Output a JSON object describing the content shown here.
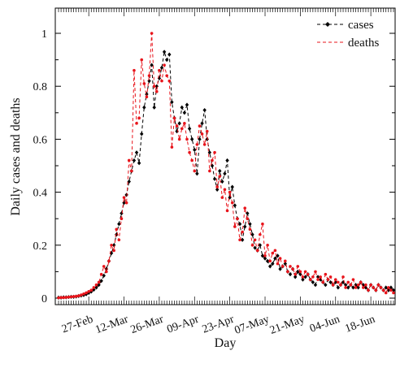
{
  "chart_data": {
    "type": "line",
    "xlabel": "Day",
    "ylabel": "Daily cases and deaths",
    "ylim": [
      0,
      1.05
    ],
    "yticks": [
      "0",
      "0.2",
      "0.4",
      "0.6",
      "0.8",
      "1"
    ],
    "x_start": "2020-02-15",
    "n_days": 134,
    "xtick_labels": [
      "27-Feb",
      "12-Mar",
      "26-Mar",
      "09-Apr",
      "23-Apr",
      "07-May",
      "21-May",
      "04-Jun",
      "18-Jun"
    ],
    "grid": false,
    "legend": "top-right",
    "series": [
      {
        "name": "cases",
        "color": "#000000",
        "values": [
          0.002,
          0.002,
          0.003,
          0.003,
          0.004,
          0.005,
          0.005,
          0.006,
          0.008,
          0.01,
          0.012,
          0.015,
          0.02,
          0.025,
          0.032,
          0.04,
          0.05,
          0.065,
          0.085,
          0.11,
          0.14,
          0.17,
          0.2,
          0.24,
          0.28,
          0.32,
          0.36,
          0.39,
          0.44,
          0.48,
          0.52,
          0.55,
          0.51,
          0.62,
          0.72,
          0.77,
          0.82,
          0.88,
          0.72,
          0.8,
          0.83,
          0.87,
          0.93,
          0.9,
          0.92,
          0.74,
          0.68,
          0.63,
          0.66,
          0.72,
          0.7,
          0.73,
          0.64,
          0.6,
          0.56,
          0.47,
          0.6,
          0.66,
          0.71,
          0.6,
          0.55,
          0.5,
          0.45,
          0.41,
          0.48,
          0.44,
          0.47,
          0.52,
          0.38,
          0.42,
          0.35,
          0.3,
          0.28,
          0.22,
          0.27,
          0.32,
          0.28,
          0.24,
          0.19,
          0.18,
          0.2,
          0.16,
          0.15,
          0.14,
          0.12,
          0.13,
          0.15,
          0.16,
          0.11,
          0.12,
          0.13,
          0.1,
          0.09,
          0.11,
          0.08,
          0.1,
          0.09,
          0.07,
          0.08,
          0.09,
          0.07,
          0.06,
          0.05,
          0.08,
          0.07,
          0.06,
          0.05,
          0.07,
          0.06,
          0.05,
          0.06,
          0.04,
          0.05,
          0.06,
          0.05,
          0.04,
          0.05,
          0.04,
          0.05,
          0.04,
          0.06,
          0.05,
          0.04,
          0.03,
          0.05,
          0.04,
          0.03,
          0.05,
          0.04,
          0.03,
          0.04,
          0.03,
          0.04,
          0.03
        ]
      },
      {
        "name": "deaths",
        "color": "#e8141b",
        "values": [
          0.001,
          0.002,
          0.002,
          0.003,
          0.004,
          0.005,
          0.006,
          0.007,
          0.009,
          0.012,
          0.016,
          0.02,
          0.025,
          0.03,
          0.04,
          0.05,
          0.06,
          0.09,
          0.12,
          0.1,
          0.14,
          0.2,
          0.18,
          0.26,
          0.22,
          0.3,
          0.38,
          0.36,
          0.52,
          0.48,
          0.86,
          0.66,
          0.68,
          0.9,
          0.81,
          0.76,
          0.84,
          1.0,
          0.8,
          0.78,
          0.86,
          0.82,
          0.88,
          0.84,
          0.82,
          0.57,
          0.68,
          0.65,
          0.6,
          0.64,
          0.66,
          0.6,
          0.55,
          0.52,
          0.48,
          0.58,
          0.65,
          0.62,
          0.58,
          0.63,
          0.48,
          0.52,
          0.55,
          0.42,
          0.46,
          0.38,
          0.41,
          0.33,
          0.4,
          0.36,
          0.27,
          0.3,
          0.22,
          0.25,
          0.34,
          0.3,
          0.26,
          0.2,
          0.22,
          0.18,
          0.24,
          0.28,
          0.16,
          0.2,
          0.14,
          0.17,
          0.18,
          0.13,
          0.15,
          0.12,
          0.14,
          0.1,
          0.12,
          0.11,
          0.09,
          0.12,
          0.1,
          0.08,
          0.1,
          0.09,
          0.07,
          0.08,
          0.1,
          0.07,
          0.08,
          0.06,
          0.09,
          0.07,
          0.08,
          0.05,
          0.07,
          0.06,
          0.05,
          0.08,
          0.04,
          0.06,
          0.05,
          0.07,
          0.04,
          0.05,
          0.06,
          0.04,
          0.05,
          0.03,
          0.05,
          0.04,
          0.03,
          0.05,
          0.04,
          0.03,
          0.02,
          0.04,
          0.03,
          0.02
        ]
      }
    ]
  }
}
